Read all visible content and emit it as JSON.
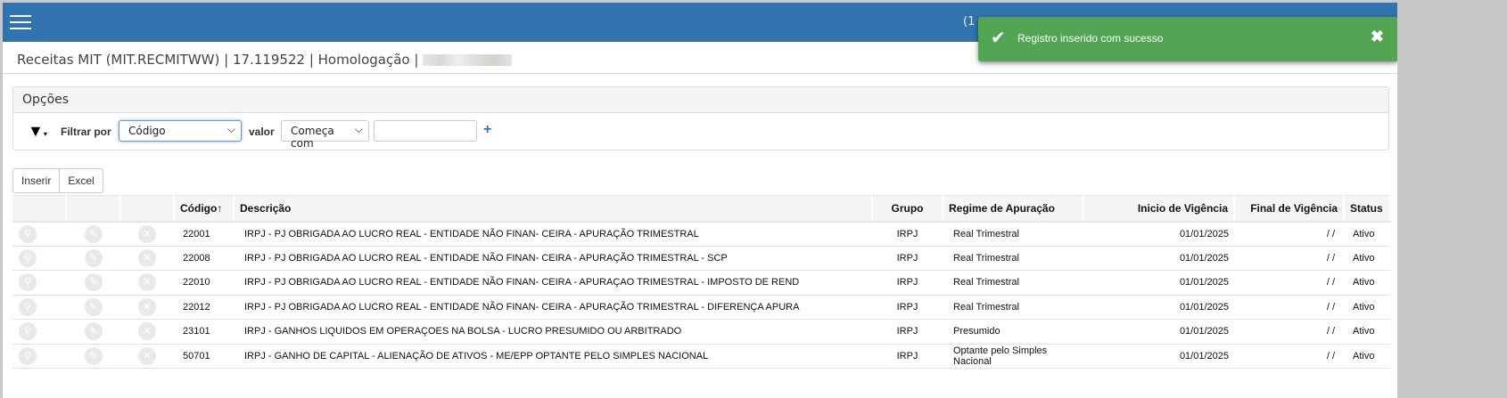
{
  "header": {
    "counter": "(1"
  },
  "title": {
    "text": "Receitas MIT (MIT.RECMITWW) | 17.119522 | Homologação |"
  },
  "options": {
    "heading": "Opções",
    "filter_label": "Filtrar por",
    "filter_field": "Código",
    "value_label": "valor",
    "operator": "Começa com",
    "value": "",
    "add": "+"
  },
  "buttons": {
    "insert": "Inserir",
    "excel": "Excel"
  },
  "table": {
    "columns": [
      "Código",
      "Descrição",
      "Grupo",
      "Regime de Apuração",
      "Inicio de Vigência",
      "Final de Vigência",
      "Status"
    ],
    "sort_indicator": "↑",
    "rows": [
      {
        "codigo": "22001",
        "descricao": "IRPJ - PJ OBRIGADA AO LUCRO REAL - ENTIDADE NÃO FINAN- CEIRA - APURAÇÃO TRIMESTRAL",
        "grupo": "IRPJ",
        "regime": "Real Trimestral",
        "inicio": "01/01/2025",
        "final": "/ /",
        "status": "Ativo"
      },
      {
        "codigo": "22008",
        "descricao": "IRPJ - PJ OBRIGADA AO LUCRO REAL - ENTIDADE NÃO FINAN- CEIRA - APURAÇÃO TRIMESTRAL - SCP",
        "grupo": "IRPJ",
        "regime": "Real Trimestral",
        "inicio": "01/01/2025",
        "final": "/ /",
        "status": "Ativo"
      },
      {
        "codigo": "22010",
        "descricao": "IRPJ - PJ OBRIGADA AO LUCRO REAL - ENTIDADE NÃO FINAN- CEIRA - APURAÇAO TRIMESTRAL - IMPOSTO DE REND",
        "grupo": "IRPJ",
        "regime": "Real Trimestral",
        "inicio": "01/01/2025",
        "final": "/ /",
        "status": "Ativo"
      },
      {
        "codigo": "22012",
        "descricao": "IRPJ - PJ OBRIGADA AO LUCRO REAL - ENTIDADE NÃO FINAN- CEIRA - APURAÇÃO TRIMESTRAL - DIFERENÇA APURA",
        "grupo": "IRPJ",
        "regime": "Real Trimestral",
        "inicio": "01/01/2025",
        "final": "/ /",
        "status": "Ativo"
      },
      {
        "codigo": "23101",
        "descricao": "IRPJ - GANHOS LIQUIDOS EM OPERAÇOES NA BOLSA - LUCRO PRESUMIDO OU ARBITRADO",
        "grupo": "IRPJ",
        "regime": "Presumido",
        "inicio": "01/01/2025",
        "final": "/ /",
        "status": "Ativo"
      },
      {
        "codigo": "50701",
        "descricao": "IRPJ - GANHO DE CAPITAL - ALIENAÇÃO DE ATIVOS - ME/EPP OPTANTE PELO SIMPLES NACIONAL",
        "grupo": "IRPJ",
        "regime": "Optante pelo Simples Nacional",
        "inicio": "01/01/2025",
        "final": "/ /",
        "status": "Ativo"
      }
    ]
  },
  "toast": {
    "message": "Registro inserido com sucesso",
    "close": "✖",
    "color": "#52a552"
  },
  "colors": {
    "header": "#3173ae"
  }
}
